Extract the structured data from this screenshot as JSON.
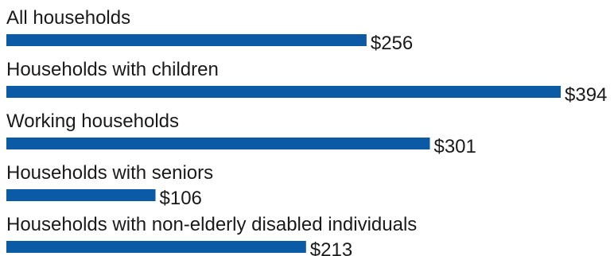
{
  "chart_data": {
    "type": "bar",
    "orientation": "horizontal",
    "categories": [
      "All households",
      "Households with children",
      "Working households",
      "Households with seniors",
      "Households with non-elderly disabled individuals"
    ],
    "values": [
      256,
      394,
      301,
      106,
      213
    ],
    "value_labels": [
      "$256",
      "$394",
      "$301",
      "$106",
      "$213"
    ],
    "bar_color": "#0a5aa5",
    "title": "",
    "xlabel": "",
    "ylabel": "",
    "xlim": [
      0,
      394
    ],
    "grid": false,
    "legend": "none"
  }
}
